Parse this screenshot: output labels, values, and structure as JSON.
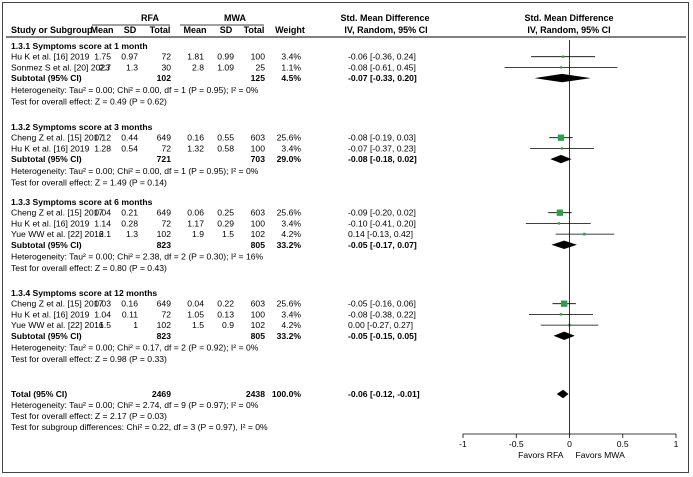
{
  "chart_data": {
    "type": "forest",
    "header": {
      "group1": "RFA",
      "group2": "MWA",
      "study_col": "Study or Subgroup",
      "mean": "Mean",
      "sd": "SD",
      "total": "Total",
      "weight": "Weight",
      "effect_title": "Std. Mean Difference",
      "effect_sub": "IV, Random, 95% CI",
      "plot_title": "Std. Mean Difference",
      "plot_sub": "IV, Random, 95% CI"
    },
    "subgroups": [
      {
        "title": "1.3.1 Symptoms score at 1 month",
        "studies": [
          {
            "name": "Hu K et al. [16] 2019",
            "m1": "1.75",
            "sd1": "0.97",
            "n1": "72",
            "m2": "1.81",
            "sd2": "0.99",
            "n2": "100",
            "weight": "3.4%",
            "ci": "-0.06 [-0.36, 0.24]",
            "est": -0.06,
            "lo": -0.36,
            "hi": 0.24,
            "w": 3.4
          },
          {
            "name": "Sonmez S et al. [20] 2023",
            "m1": "2.7",
            "sd1": "1.3",
            "n1": "30",
            "m2": "2.8",
            "sd2": "1.09",
            "n2": "25",
            "weight": "1.1%",
            "ci": "-0.08 [-0.61, 0.45]",
            "est": -0.08,
            "lo": -0.61,
            "hi": 0.45,
            "w": 1.1
          }
        ],
        "subtotal": {
          "label": "Subtotal (95% CI)",
          "n1": "102",
          "n2": "125",
          "weight": "4.5%",
          "ci": "-0.07 [-0.33, 0.20]",
          "est": -0.07,
          "lo": -0.33,
          "hi": 0.2
        },
        "het": "Heterogeneity: Tau² = 0.00; Chi² = 0.00, df = 1 (P = 0.95); I² = 0%",
        "test": "Test for overall effect: Z = 0.49 (P = 0.62)"
      },
      {
        "title": "1.3.2 Symptoms score at 3 months",
        "studies": [
          {
            "name": "Cheng Z et al. [15] 2017",
            "m1": "0.12",
            "sd1": "0.44",
            "n1": "649",
            "m2": "0.16",
            "sd2": "0.55",
            "n2": "603",
            "weight": "25.6%",
            "ci": "-0.08 [-0.19, 0.03]",
            "est": -0.08,
            "lo": -0.19,
            "hi": 0.03,
            "w": 25.6
          },
          {
            "name": "Hu K et al. [16] 2019",
            "m1": "1.28",
            "sd1": "0.54",
            "n1": "72",
            "m2": "1.32",
            "sd2": "0.58",
            "n2": "100",
            "weight": "3.4%",
            "ci": "-0.07 [-0.37, 0.23]",
            "est": -0.07,
            "lo": -0.37,
            "hi": 0.23,
            "w": 3.4
          }
        ],
        "subtotal": {
          "label": "Subtotal (95% CI)",
          "n1": "721",
          "n2": "703",
          "weight": "29.0%",
          "ci": "-0.08 [-0.18, 0.02]",
          "est": -0.08,
          "lo": -0.18,
          "hi": 0.02
        },
        "het": "Heterogeneity: Tau² = 0.00; Chi² = 0.00, df = 1 (P = 0.95); I² = 0%",
        "test": "Test for overall effect: Z = 1.49 (P = 0.14)"
      },
      {
        "title": "1.3.3 Symptoms score at 6 months",
        "studies": [
          {
            "name": "Cheng Z et al. [15] 2017",
            "m1": "0.04",
            "sd1": "0.21",
            "n1": "649",
            "m2": "0.06",
            "sd2": "0.25",
            "n2": "603",
            "weight": "25.6%",
            "ci": "-0.09 [-0.20, 0.02]",
            "est": -0.09,
            "lo": -0.2,
            "hi": 0.02,
            "w": 25.6
          },
          {
            "name": "Hu K et al. [16] 2019",
            "m1": "1.14",
            "sd1": "0.28",
            "n1": "72",
            "m2": "1.17",
            "sd2": "0.29",
            "n2": "100",
            "weight": "3.4%",
            "ci": "-0.10 [-0.41, 0.20]",
            "est": -0.1,
            "lo": -0.41,
            "hi": 0.2,
            "w": 3.4
          },
          {
            "name": "Yue WW et al. [22] 2016",
            "m1": "2.1",
            "sd1": "1.3",
            "n1": "102",
            "m2": "1.9",
            "sd2": "1.5",
            "n2": "102",
            "weight": "4.2%",
            "ci": "0.14 [-0.13, 0.42]",
            "est": 0.14,
            "lo": -0.13,
            "hi": 0.42,
            "w": 4.2
          }
        ],
        "subtotal": {
          "label": "Subtotal (95% CI)",
          "n1": "823",
          "n2": "805",
          "weight": "33.2%",
          "ci": "-0.05 [-0.17, 0.07]",
          "est": -0.05,
          "lo": -0.17,
          "hi": 0.07
        },
        "het": "Heterogeneity: Tau² = 0.00; Chi² = 2.38, df = 2 (P = 0.30); I² = 16%",
        "test": "Test for overall effect: Z = 0.80 (P = 0.43)"
      },
      {
        "title": "1.3.4 Symptoms score at 12 months",
        "studies": [
          {
            "name": "Cheng Z et al. [15] 2017",
            "m1": "0.03",
            "sd1": "0.16",
            "n1": "649",
            "m2": "0.04",
            "sd2": "0.22",
            "n2": "603",
            "weight": "25.6%",
            "ci": "-0.05 [-0.16, 0.06]",
            "est": -0.05,
            "lo": -0.16,
            "hi": 0.06,
            "w": 25.6
          },
          {
            "name": "Hu K et al. [16] 2019",
            "m1": "1.04",
            "sd1": "0.11",
            "n1": "72",
            "m2": "1.05",
            "sd2": "0.13",
            "n2": "100",
            "weight": "3.4%",
            "ci": "-0.08 [-0.38, 0.22]",
            "est": -0.08,
            "lo": -0.38,
            "hi": 0.22,
            "w": 3.4
          },
          {
            "name": "Yue WW et al. [22] 2016",
            "m1": "1.5",
            "sd1": "1",
            "n1": "102",
            "m2": "1.5",
            "sd2": "0.9",
            "n2": "102",
            "weight": "4.2%",
            "ci": "0.00 [-0.27, 0.27]",
            "est": 0.0,
            "lo": -0.27,
            "hi": 0.27,
            "w": 4.2
          }
        ],
        "subtotal": {
          "label": "Subtotal (95% CI)",
          "n1": "823",
          "n2": "805",
          "weight": "33.2%",
          "ci": "-0.05 [-0.15, 0.05]",
          "est": -0.05,
          "lo": -0.15,
          "hi": 0.05
        },
        "het": "Heterogeneity: Tau² = 0.00; Chi² = 0.17, df = 2 (P = 0.92); I² = 0%",
        "test": "Test for overall effect: Z = 0.98 (P = 0.33)"
      }
    ],
    "total": {
      "label": "Total (95% CI)",
      "n1": "2469",
      "n2": "2438",
      "weight": "100.0%",
      "ci": "-0.06 [-0.12, -0.01]",
      "est": -0.06,
      "lo": -0.12,
      "hi": -0.01
    },
    "footer": [
      "Heterogeneity: Tau² = 0.00; Chi² = 2.74, df = 9 (P = 0.97); I² = 0%",
      "Test for overall effect: Z = 2.17 (P = 0.03)",
      "Test for subgroup differences: Chi² = 0.22, df = 3 (P = 0.97), I² = 0%"
    ],
    "axis": {
      "xlim": [
        -1,
        1
      ],
      "ticks": [
        -1,
        -0.5,
        0,
        0.5,
        1
      ],
      "tick_labels": [
        "-1",
        "-0.5",
        "0",
        "0.5",
        "1"
      ],
      "left_label": "Favors RFA",
      "right_label": "Favors MWA"
    },
    "colors": {
      "study_marker": "#2e9e4b",
      "diamond": "#000000",
      "line": "#000000"
    }
  }
}
